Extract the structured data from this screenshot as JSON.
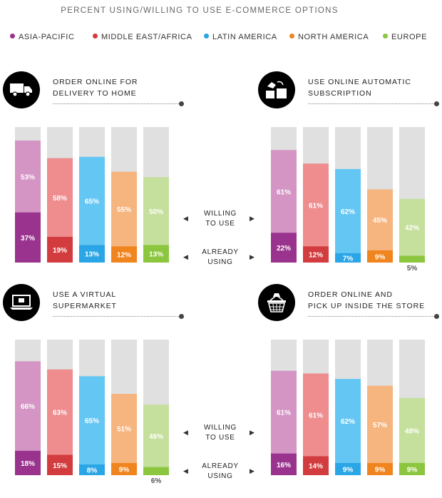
{
  "chart_data": {
    "type": "bar",
    "title": "PERCENT USING/WILLING TO USE E-COMMERCE OPTIONS",
    "legend_placement": "top",
    "stacked": true,
    "categories": [
      "ASIA-PACIFIC",
      "MIDDLE EAST/AFRICA",
      "LATIN AMERICA",
      "NORTH AMERICA",
      "EUROPE"
    ],
    "colors": {
      "willing": [
        "#d494c4",
        "#ee8c8e",
        "#64c7f3",
        "#f6b47f",
        "#c5df9d"
      ],
      "using": [
        "#99338d",
        "#d23c3e",
        "#2aa5e5",
        "#f0841e",
        "#8cc63f"
      ],
      "track": "#e0e0e1"
    },
    "ylim": [
      0,
      100
    ],
    "series_labels": {
      "willing": "WILLING\nTO USE",
      "using": "ALREADY\nUSING"
    },
    "panels": [
      {
        "title": "ORDER ONLINE FOR\nDELIVERY TO HOME",
        "icon": "truck-icon",
        "using": [
          37,
          19,
          13,
          12,
          13
        ],
        "willing": [
          53,
          58,
          65,
          55,
          50
        ]
      },
      {
        "title": "USE ONLINE AUTOMATIC\nSUBSCRIPTION",
        "icon": "subscription-icon",
        "using": [
          22,
          12,
          7,
          9,
          5
        ],
        "willing": [
          61,
          61,
          62,
          45,
          42
        ]
      },
      {
        "title": "USE A VIRTUAL\nSUPERMARKET",
        "icon": "laptop-icon",
        "using": [
          18,
          15,
          8,
          9,
          6
        ],
        "willing": [
          66,
          63,
          65,
          51,
          46
        ]
      },
      {
        "title": "ORDER ONLINE AND\nPICK UP INSIDE THE STORE",
        "icon": "basket-icon",
        "using": [
          16,
          14,
          9,
          9,
          9
        ],
        "willing": [
          61,
          61,
          62,
          57,
          48
        ]
      }
    ]
  }
}
